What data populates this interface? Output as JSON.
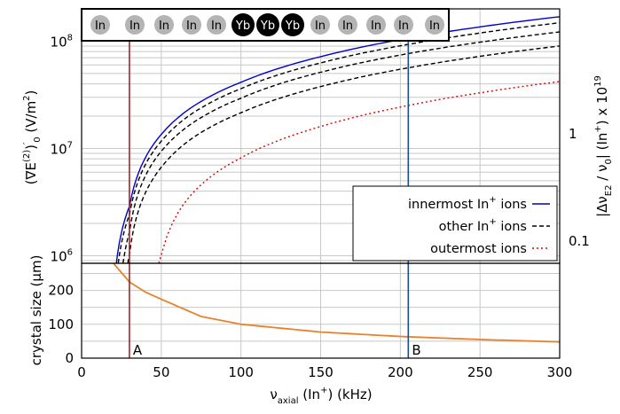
{
  "chart_data": [
    {
      "type": "line",
      "panel": "top",
      "y_scale": "log",
      "xlim": [
        0,
        300
      ],
      "ylim": [
        850000,
        200000000
      ],
      "y_ticks": [
        {
          "value": 1000000,
          "label": "10",
          "exp": "6"
        },
        {
          "value": 10000000,
          "label": "10",
          "exp": "7"
        },
        {
          "value": 100000000,
          "label": "10",
          "exp": "8"
        }
      ],
      "ylabel": {
        "a": "(∇E",
        "b": "(2)",
        "c": ")",
        "d": "′",
        "e": "0",
        "f": " (V/m",
        "g": "2",
        "h": ")"
      },
      "y2label": {
        "a": "|Δν",
        "b": "E2",
        "c": " / ν",
        "d": "0",
        "e": "| (In",
        "f": "+",
        "g": ") x 10",
        "h": "19"
      },
      "y2_ticks": [
        {
          "value": 1,
          "label": "1"
        },
        {
          "value": 0.1,
          "label": "0.1"
        }
      ],
      "y2_factor": 7.3e-08,
      "grid": true,
      "legend_position": "bottom-right",
      "series": [
        {
          "name": "innermost In",
          "name_sup": "+",
          "name_tail": " ions",
          "color": "#0000cc",
          "style": "solid",
          "x_start": 21.8,
          "x": [
            21.8,
            30,
            50,
            100,
            150,
            200,
            250,
            300
          ],
          "y": [
            850000,
            2880000,
            13520000,
            41400000,
            71700000,
            103300000,
            135800000,
            169000000
          ]
        },
        {
          "name": "other In",
          "name_sup": "+",
          "name_tail": " ions",
          "color": "#000000",
          "style": "dashed",
          "x_start": 23,
          "x": [
            23,
            30,
            50,
            100,
            150,
            200,
            250,
            300
          ],
          "y": [
            850000,
            2420000,
            11700000,
            36100000,
            62700000,
            90500000,
            119100000,
            148400000
          ]
        },
        {
          "name": "",
          "color": "#000000",
          "style": "dashed",
          "x_start": 26,
          "x": [
            26,
            30,
            50,
            100,
            150,
            200,
            250,
            300
          ],
          "y": [
            850000,
            1660000,
            9420000,
            29400000,
            51300000,
            74200000,
            97800000,
            121900000
          ]
        },
        {
          "name": "",
          "color": "#000000",
          "style": "dashed",
          "x_start": 29,
          "x": [
            29,
            30,
            50,
            100,
            150,
            200,
            250,
            300
          ],
          "y": [
            850000,
            1030000,
            6680000,
            21500000,
            37700000,
            54700000,
            72200000,
            90100000
          ]
        },
        {
          "name": "outermost ions",
          "color": "#dd0000",
          "style": "dotted",
          "x_start": 48.5,
          "x": [
            48.5,
            50,
            100,
            150,
            200,
            250,
            300
          ],
          "y": [
            850000,
            1020000,
            8170000,
            16000000,
            24300000,
            33000000,
            42000000
          ]
        }
      ],
      "ion_strip": [
        "In",
        "In",
        "In",
        "In",
        "In",
        "Yb",
        "Yb",
        "Yb",
        "In",
        "In",
        "In",
        "In",
        "In"
      ],
      "markers": [
        {
          "x": 30,
          "color": "#aa2222"
        },
        {
          "x": 205,
          "color": "#1a4f8a"
        }
      ]
    },
    {
      "type": "line",
      "panel": "bottom",
      "xlim": [
        0,
        300
      ],
      "ylim": [
        0,
        280
      ],
      "x_ticks": [
        0,
        50,
        100,
        150,
        200,
        250,
        300
      ],
      "y_ticks": [
        0,
        100,
        200
      ],
      "xlabel": {
        "a": "ν",
        "b": "axial",
        "c": " (In",
        "d": "+",
        "e": ") (kHz)"
      },
      "ylabel": "crystal size (µm)",
      "grid": true,
      "series": [
        {
          "name": "",
          "color": "#e8822a",
          "style": "solid",
          "x": [
            20,
            30,
            40,
            50,
            75,
            100,
            150,
            200,
            250,
            300
          ],
          "y": [
            280,
            225,
            195,
            174,
            123,
            100,
            77,
            64,
            55,
            48
          ]
        }
      ],
      "markers": [
        {
          "x": 30,
          "label": "A",
          "color": "#aa2222"
        },
        {
          "x": 205,
          "label": "B",
          "color": "#1a4f8a"
        }
      ]
    }
  ]
}
